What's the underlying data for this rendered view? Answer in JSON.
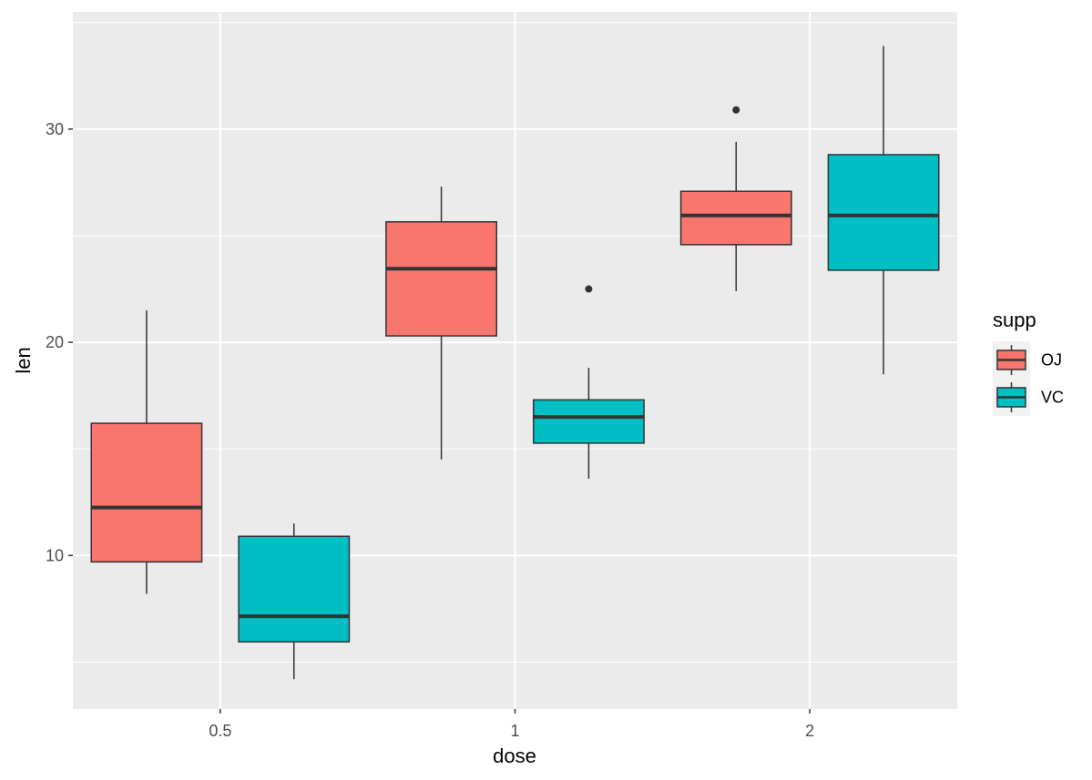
{
  "chart_data": {
    "type": "box",
    "x": {
      "label": "dose",
      "categories": [
        "0.5",
        "1",
        "2"
      ]
    },
    "y": {
      "label": "len",
      "ticks": [
        10,
        20,
        30
      ],
      "range": [
        2.8,
        35.5
      ]
    },
    "legend": {
      "title": "supp",
      "placement": "right",
      "entries": [
        {
          "label": "OJ",
          "color": "#F8766D"
        },
        {
          "label": "VC",
          "color": "#00BFC4"
        }
      ]
    },
    "series": [
      {
        "name": "OJ",
        "color": "#F8766D",
        "boxes": [
          {
            "dose": "0.5",
            "whisker_low": 8.2,
            "q1": 9.7,
            "median": 12.25,
            "q3": 16.2,
            "whisker_high": 21.5,
            "outliers": []
          },
          {
            "dose": "1",
            "whisker_low": 14.5,
            "q1": 20.3,
            "median": 23.45,
            "q3": 25.65,
            "whisker_high": 27.3,
            "outliers": []
          },
          {
            "dose": "2",
            "whisker_low": 22.4,
            "q1": 24.58,
            "median": 25.95,
            "q3": 27.08,
            "whisker_high": 29.4,
            "outliers": [
              30.9
            ]
          }
        ]
      },
      {
        "name": "VC",
        "color": "#00BFC4",
        "boxes": [
          {
            "dose": "0.5",
            "whisker_low": 4.2,
            "q1": 5.95,
            "median": 7.15,
            "q3": 10.9,
            "whisker_high": 11.5,
            "outliers": []
          },
          {
            "dose": "1",
            "whisker_low": 13.6,
            "q1": 15.27,
            "median": 16.5,
            "q3": 17.3,
            "whisker_high": 18.8,
            "outliers": [
              22.5
            ]
          },
          {
            "dose": "2",
            "whisker_low": 18.5,
            "q1": 23.38,
            "median": 25.95,
            "q3": 28.8,
            "whisker_high": 33.9,
            "outliers": []
          }
        ]
      }
    ],
    "grid": true,
    "panel_background": "#EBEBEB",
    "grid_color": "#FFFFFF",
    "box_outline_color": "#333333"
  }
}
